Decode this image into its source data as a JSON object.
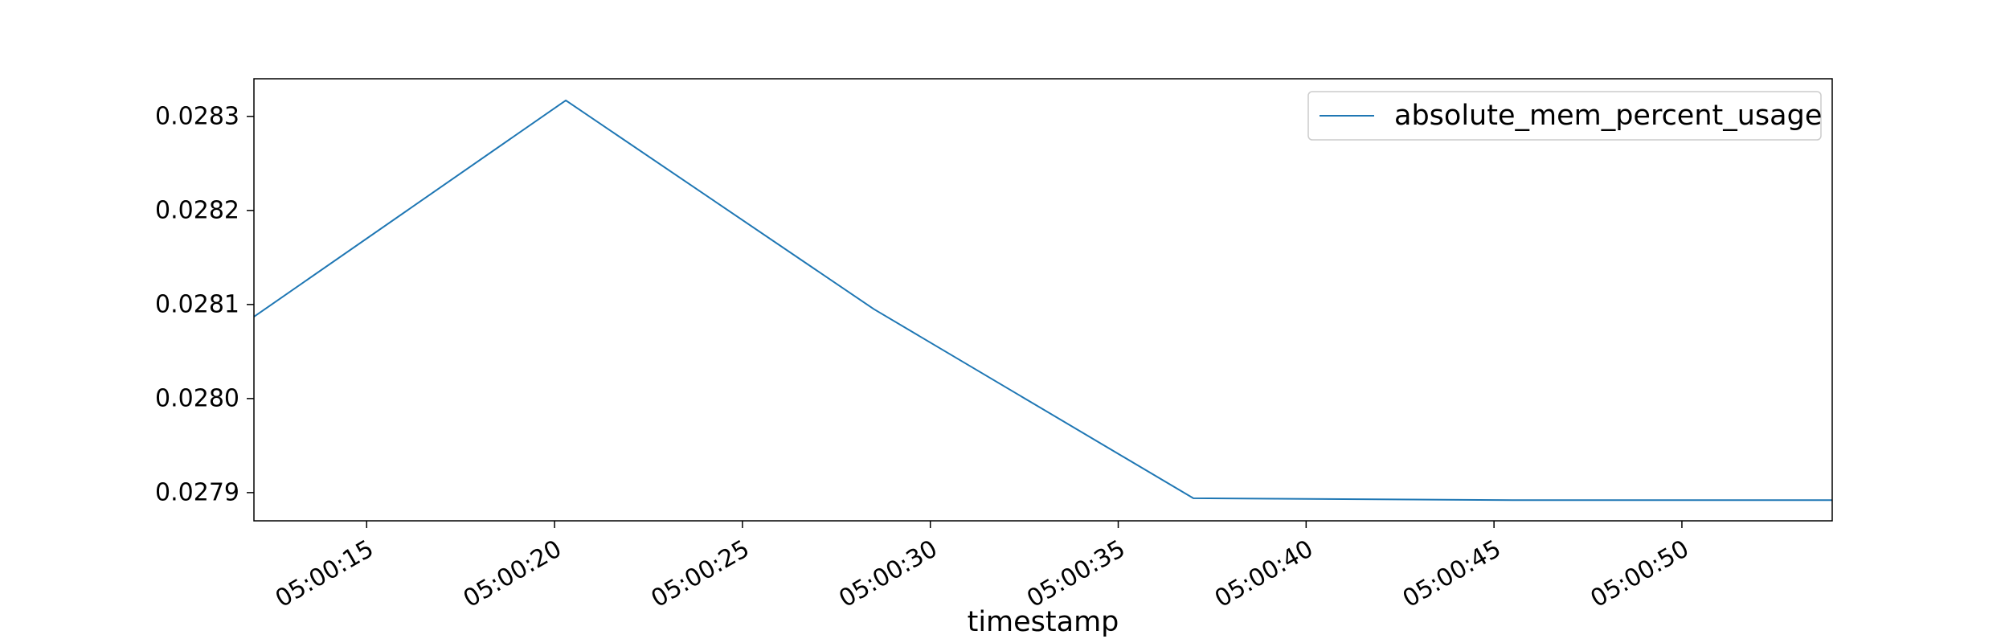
{
  "chart_data": {
    "type": "line",
    "title": "",
    "xlabel": "timestamp",
    "ylabel": "",
    "x_unit": "time (HH:MM:SS)",
    "xlim": [
      "05:00:12",
      "05:00:54"
    ],
    "ylim": [
      0.02787,
      0.02834
    ],
    "x_ticks": [
      "05:00:15",
      "05:00:20",
      "05:00:25",
      "05:00:30",
      "05:00:35",
      "05:00:40",
      "05:00:45",
      "05:00:50"
    ],
    "y_ticks": [
      "0.0279",
      "0.0280",
      "0.0281",
      "0.0282",
      "0.0283"
    ],
    "grid": false,
    "legend": {
      "position": "top-right"
    },
    "series": [
      {
        "name": "absolute_mem_percent_usage",
        "color": "#1f77b4",
        "x": [
          "05:00:12",
          "05:00:20.3",
          "05:00:28.5",
          "05:00:37",
          "05:00:45.5",
          "05:00:54"
        ],
        "y": [
          0.028087,
          0.028317,
          0.028095,
          0.027894,
          0.027892,
          0.027892
        ]
      }
    ]
  }
}
